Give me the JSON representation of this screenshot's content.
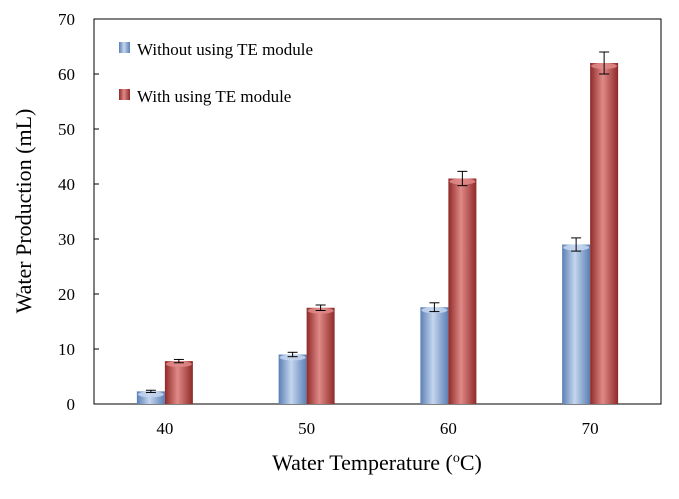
{
  "chart_data": {
    "type": "bar",
    "xlabel": "Water Temperature (°C)",
    "xlabel_parts": [
      "Water Temperature (",
      "o",
      "C)"
    ],
    "ylabel": "Water Production (mL)",
    "categories": [
      "40",
      "50",
      "60",
      "70"
    ],
    "ylim": [
      0,
      70
    ],
    "yticks": [
      0,
      10,
      20,
      30,
      40,
      50,
      60,
      70
    ],
    "grid": false,
    "legend_position": "top-left",
    "series": [
      {
        "name": "Without using TE module",
        "values": [
          2.3,
          9.0,
          17.6,
          29.0
        ],
        "errors": [
          0.2,
          0.4,
          0.8,
          1.2
        ],
        "color_light": "#c5d6ee",
        "color_dark": "#5a7fb5"
      },
      {
        "name": "With using TE module",
        "values": [
          7.8,
          17.5,
          41.0,
          62.0
        ],
        "errors": [
          0.3,
          0.5,
          1.3,
          2.0
        ],
        "color_light": "#e08a88",
        "color_dark": "#8e2a28"
      }
    ]
  }
}
